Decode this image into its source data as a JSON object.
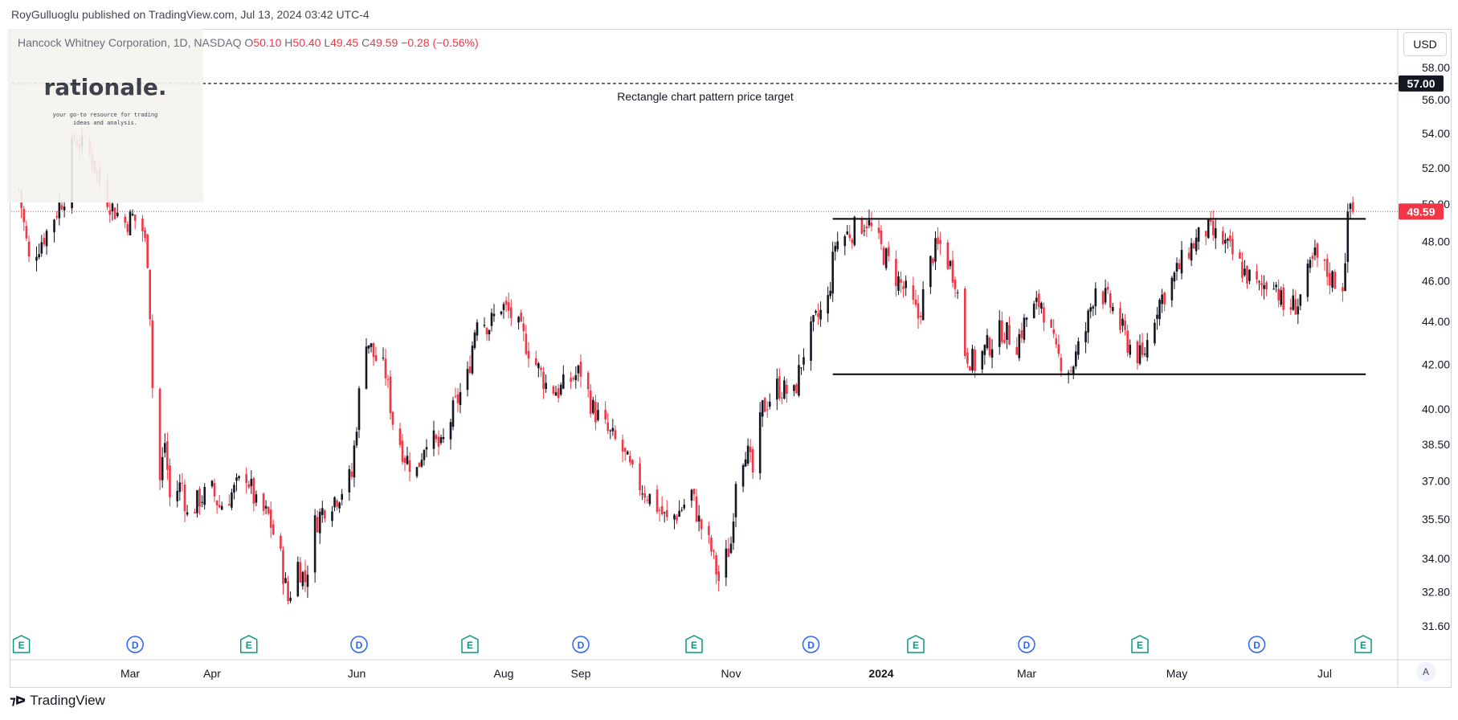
{
  "header": {
    "published": "RoyGulluoglu published on TradingView.com, Jul 13, 2024 03:42 UTC-4"
  },
  "legend": {
    "symbol": "Hancock Whitney Corporation, 1D, NASDAQ",
    "o_label": "O",
    "o_value": "50.10",
    "h_label": "H",
    "h_value": "50.40",
    "l_label": "L",
    "l_value": "49.45",
    "c_label": "C",
    "c_value": "49.59",
    "change": "−0.28 (−0.56%)"
  },
  "logo": {
    "brand": "rationale.",
    "tagline_1": "your go-to resource for trading",
    "tagline_2": "ideas and analysis."
  },
  "currency_button": "USD",
  "auto_button": "A",
  "footer": {
    "brand": "TradingView"
  },
  "colors": {
    "up": "#131722",
    "down": "#f23645",
    "grid": "#ffffff",
    "axis_text": "#131722",
    "price_line": "#f23645"
  },
  "chart_data": {
    "type": "candlestick",
    "symbol": "Hancock Whitney Corporation",
    "interval": "1D",
    "exchange": "NASDAQ",
    "y_ticks": [
      31.6,
      32.8,
      34.0,
      35.5,
      37.0,
      38.5,
      40.0,
      42.0,
      44.0,
      46.0,
      48.0,
      50.0,
      52.0,
      54.0,
      56.0,
      58.0
    ],
    "y_tick_labels": [
      "31.60",
      "32.80",
      "34.00",
      "35.50",
      "37.00",
      "38.50",
      "40.00",
      "42.00",
      "44.00",
      "46.00",
      "48.00",
      "50.00",
      "52.00",
      "54.00",
      "56.00",
      "58.00"
    ],
    "x_tick_labels": [
      "Mar",
      "Apr",
      "Jun",
      "Aug",
      "Sep",
      "Nov",
      "2024",
      "Mar",
      "May",
      "Jul"
    ],
    "x_tick_dates": [
      "2023-03-01",
      "2023-04-03",
      "2023-06-01",
      "2023-08-01",
      "2023-09-01",
      "2023-11-01",
      "2024-01-02",
      "2024-03-01",
      "2024-05-01",
      "2024-07-01"
    ],
    "current_price": 49.59,
    "current_price_label": "49.59",
    "target_price": 57.0,
    "target_price_label": "57.00",
    "target_annotation": "Rectangle chart pattern price target",
    "rectangle_top": 49.2,
    "rectangle_bottom": 41.55,
    "rectangle_start": "2023-12-13",
    "rectangle_end": "2024-07-12",
    "close_path": [
      [
        "2023-01-16",
        50.8
      ],
      [
        "2023-01-20",
        47.0
      ],
      [
        "2023-01-27",
        48.5
      ],
      [
        "2023-02-03",
        50.5
      ],
      [
        "2023-02-07",
        53.8
      ],
      [
        "2023-02-10",
        53.2
      ],
      [
        "2023-02-14",
        52.6
      ],
      [
        "2023-02-17",
        51.2
      ],
      [
        "2023-02-22",
        49.8
      ],
      [
        "2023-02-27",
        49.0
      ],
      [
        "2023-03-02",
        49.3
      ],
      [
        "2023-03-06",
        48.6
      ],
      [
        "2023-03-08",
        47.2
      ],
      [
        "2023-03-09",
        44.5
      ],
      [
        "2023-03-10",
        41.0
      ],
      [
        "2023-03-13",
        37.0
      ],
      [
        "2023-03-15",
        38.6
      ],
      [
        "2023-03-17",
        36.3
      ],
      [
        "2023-03-22",
        36.9
      ],
      [
        "2023-03-24",
        35.6
      ],
      [
        "2023-03-29",
        36.3
      ],
      [
        "2023-04-03",
        36.6
      ],
      [
        "2023-04-06",
        36.0
      ],
      [
        "2023-04-12",
        36.6
      ],
      [
        "2023-04-17",
        37.3
      ],
      [
        "2023-04-21",
        36.0
      ],
      [
        "2023-04-26",
        35.6
      ],
      [
        "2023-05-01",
        34.0
      ],
      [
        "2023-05-04",
        32.5
      ],
      [
        "2023-05-08",
        33.8
      ],
      [
        "2023-05-11",
        33.2
      ],
      [
        "2023-05-15",
        35.3
      ],
      [
        "2023-05-19",
        36.0
      ],
      [
        "2023-05-24",
        36.4
      ],
      [
        "2023-05-30",
        37.2
      ],
      [
        "2023-06-02",
        40.6
      ],
      [
        "2023-06-05",
        43.3
      ],
      [
        "2023-06-08",
        42.4
      ],
      [
        "2023-06-13",
        41.6
      ],
      [
        "2023-06-16",
        39.5
      ],
      [
        "2023-06-21",
        38.0
      ],
      [
        "2023-06-26",
        37.4
      ],
      [
        "2023-06-30",
        38.9
      ],
      [
        "2023-07-06",
        38.3
      ],
      [
        "2023-07-12",
        40.2
      ],
      [
        "2023-07-17",
        41.4
      ],
      [
        "2023-07-21",
        44.4
      ],
      [
        "2023-07-26",
        43.8
      ],
      [
        "2023-07-31",
        44.8
      ],
      [
        "2023-08-04",
        44.3
      ],
      [
        "2023-08-09",
        43.2
      ],
      [
        "2023-08-14",
        42.0
      ],
      [
        "2023-08-18",
        41.1
      ],
      [
        "2023-08-23",
        40.8
      ],
      [
        "2023-08-28",
        41.3
      ],
      [
        "2023-09-01",
        41.7
      ],
      [
        "2023-09-06",
        40.0
      ],
      [
        "2023-09-12",
        39.0
      ],
      [
        "2023-09-18",
        38.2
      ],
      [
        "2023-09-22",
        37.2
      ],
      [
        "2023-09-27",
        36.6
      ],
      [
        "2023-10-02",
        36.0
      ],
      [
        "2023-10-06",
        35.4
      ],
      [
        "2023-10-11",
        35.8
      ],
      [
        "2023-10-16",
        36.5
      ],
      [
        "2023-10-19",
        35.4
      ],
      [
        "2023-10-24",
        34.3
      ],
      [
        "2023-10-27",
        33.2
      ],
      [
        "2023-11-01",
        34.6
      ],
      [
        "2023-11-03",
        37.2
      ],
      [
        "2023-11-07",
        38.4
      ],
      [
        "2023-11-10",
        37.3
      ],
      [
        "2023-11-14",
        40.0
      ],
      [
        "2023-11-20",
        41.0
      ],
      [
        "2023-11-27",
        40.6
      ],
      [
        "2023-12-01",
        42.6
      ],
      [
        "2023-12-06",
        44.0
      ],
      [
        "2023-12-11",
        45.0
      ],
      [
        "2023-12-14",
        47.9
      ],
      [
        "2023-12-19",
        48.4
      ],
      [
        "2023-12-27",
        49.1
      ],
      [
        "2024-01-02",
        47.6
      ],
      [
        "2024-01-08",
        46.2
      ],
      [
        "2024-01-12",
        45.4
      ],
      [
        "2024-01-17",
        44.2
      ],
      [
        "2024-01-23",
        47.4
      ],
      [
        "2024-01-26",
        47.8
      ],
      [
        "2024-02-01",
        46.2
      ],
      [
        "2024-02-05",
        42.6
      ],
      [
        "2024-02-09",
        42.0
      ],
      [
        "2024-02-14",
        42.8
      ],
      [
        "2024-02-20",
        43.6
      ],
      [
        "2024-02-26",
        43.0
      ],
      [
        "2024-03-01",
        44.2
      ],
      [
        "2024-03-07",
        45.0
      ],
      [
        "2024-03-13",
        42.4
      ],
      [
        "2024-03-19",
        41.8
      ],
      [
        "2024-03-25",
        43.6
      ],
      [
        "2024-03-29",
        45.8
      ],
      [
        "2024-04-05",
        44.6
      ],
      [
        "2024-04-11",
        43.0
      ],
      [
        "2024-04-17",
        42.2
      ],
      [
        "2024-04-23",
        44.8
      ],
      [
        "2024-04-29",
        46.0
      ],
      [
        "2024-05-06",
        47.6
      ],
      [
        "2024-05-13",
        48.6
      ],
      [
        "2024-05-20",
        48.0
      ],
      [
        "2024-05-29",
        46.4
      ],
      [
        "2024-06-04",
        45.6
      ],
      [
        "2024-06-10",
        46.2
      ],
      [
        "2024-06-14",
        44.6
      ],
      [
        "2024-06-20",
        44.9
      ],
      [
        "2024-06-27",
        47.2
      ],
      [
        "2024-07-03",
        46.2
      ],
      [
        "2024-07-08",
        45.8
      ],
      [
        "2024-07-10",
        49.0
      ],
      [
        "2024-07-11",
        50.0
      ],
      [
        "2024-07-12",
        49.59
      ]
    ],
    "event_markers": [
      {
        "label": "E",
        "date": "2023-01-17"
      },
      {
        "label": "D",
        "date": "2023-03-03"
      },
      {
        "label": "E",
        "date": "2023-04-18"
      },
      {
        "label": "D",
        "date": "2023-06-02"
      },
      {
        "label": "E",
        "date": "2023-07-18"
      },
      {
        "label": "D",
        "date": "2023-09-01"
      },
      {
        "label": "E",
        "date": "2023-10-17"
      },
      {
        "label": "D",
        "date": "2023-12-04"
      },
      {
        "label": "E",
        "date": "2024-01-16"
      },
      {
        "label": "D",
        "date": "2024-03-01"
      },
      {
        "label": "E",
        "date": "2024-04-16"
      },
      {
        "label": "D",
        "date": "2024-06-03"
      },
      {
        "label": "E",
        "date": "2024-07-16"
      }
    ],
    "y_scale": "log",
    "grid": false
  }
}
